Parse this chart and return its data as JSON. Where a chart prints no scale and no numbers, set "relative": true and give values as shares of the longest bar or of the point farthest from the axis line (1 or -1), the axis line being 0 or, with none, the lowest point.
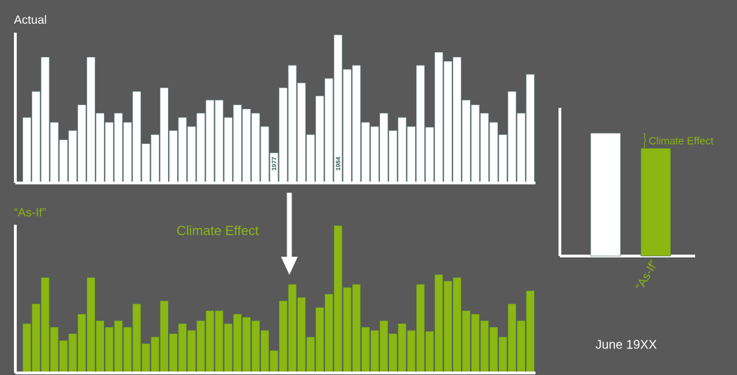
{
  "chart_data": [
    {
      "type": "bar",
      "title": "Actual",
      "relative": true,
      "color": "#ffffff",
      "categories": [
        null,
        null,
        null,
        null,
        null,
        null,
        null,
        null,
        null,
        null,
        null,
        null,
        null,
        null,
        null,
        null,
        null,
        null,
        null,
        null,
        null,
        null,
        null,
        null,
        null,
        null,
        null,
        "1977",
        null,
        null,
        null,
        null,
        null,
        null,
        "1984",
        null,
        null,
        null,
        null,
        null,
        null,
        null,
        null,
        null,
        null,
        null,
        null,
        null,
        null,
        null,
        null,
        null,
        null,
        null,
        null,
        null
      ],
      "values": [
        0.443,
        0.618,
        0.85,
        0.41,
        0.292,
        0.355,
        0.528,
        0.85,
        0.472,
        0.41,
        0.472,
        0.41,
        0.618,
        0.266,
        0.327,
        0.643,
        0.355,
        0.443,
        0.382,
        0.472,
        0.56,
        0.56,
        0.443,
        0.528,
        0.5,
        0.472,
        0.382,
        0.204,
        0.643,
        0.794,
        0.676,
        0.327,
        0.588,
        0.706,
        1,
        0.767,
        0.794,
        0.41,
        0.382,
        0.472,
        0.355,
        0.443,
        0.382,
        0.794,
        0.377,
        0.883,
        0.822,
        0.85,
        0.56,
        0.528,
        0.472,
        0.41,
        0.327,
        0.618,
        0.472,
        0.733
      ]
    },
    {
      "type": "bar",
      "title": "“As-If”",
      "relative": true,
      "color": "#8cb612",
      "annotations": [
        "Climate Effect"
      ],
      "categories": [
        null,
        null,
        null,
        null,
        null,
        null,
        null,
        null,
        null,
        null,
        null,
        null,
        null,
        null,
        null,
        null,
        null,
        null,
        null,
        null,
        null,
        null,
        null,
        null,
        null,
        null,
        null,
        null,
        null,
        null,
        null,
        null,
        null,
        null,
        null,
        null,
        null,
        null,
        null,
        null,
        null,
        null,
        null,
        null,
        null,
        null,
        null,
        null,
        null,
        null,
        null,
        null,
        null,
        null,
        null,
        null
      ],
      "values": [
        0.335,
        0.469,
        0.648,
        0.311,
        0.221,
        0.267,
        0.4,
        0.648,
        0.355,
        0.311,
        0.355,
        0.311,
        0.469,
        0.2,
        0.245,
        0.49,
        0.267,
        0.335,
        0.289,
        0.355,
        0.423,
        0.423,
        0.335,
        0.4,
        0.379,
        0.355,
        0.289,
        0.153,
        0.49,
        0.602,
        0.513,
        0.245,
        0.445,
        0.536,
        1,
        0.58,
        0.602,
        0.311,
        0.289,
        0.355,
        0.267,
        0.335,
        0.289,
        0.602,
        0.283,
        0.668,
        0.624,
        0.648,
        0.423,
        0.4,
        0.355,
        0.311,
        0.245,
        0.469,
        0.355,
        0.558
      ]
    },
    {
      "type": "bar",
      "relative": true,
      "categories": [
        null,
        "“As-If”"
      ],
      "values": [
        1,
        0.877
      ],
      "colors": [
        "#ffffff",
        "#8cb612"
      ],
      "annotations": [
        "Climate Effect",
        "June 19XX"
      ]
    }
  ]
}
